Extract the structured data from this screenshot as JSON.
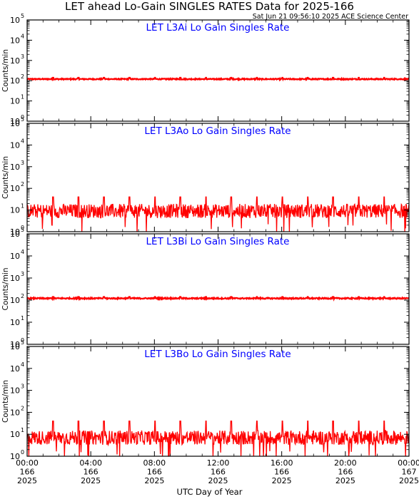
{
  "title": "LET ahead Lo-Gain SINGLES RATES Data for 2025-166",
  "timestamp": "Sat Jun 21 09:56:10 2025 ACE Science Center",
  "xlabel": "UTC Day of Year",
  "colors": {
    "axes": "#000000",
    "series": "#ff0000",
    "panel_title": "#0000ff"
  },
  "chart_data": [
    {
      "type": "line",
      "title": "LET L3Ai Lo Gain Singles Rate",
      "ylabel": "Counts/min",
      "yscale": "log",
      "ylim": [
        1,
        100000
      ],
      "y_ticks": [
        "10^0",
        "10^1",
        "10^2",
        "10^3",
        "10^4",
        "10^5"
      ],
      "xlim": [
        "2025-166 00:00",
        "2025-167 00:00"
      ],
      "series": [
        {
          "base": 120,
          "spike": 140,
          "spike_every_hours": 1.6,
          "noise": 0.02
        }
      ]
    },
    {
      "type": "line",
      "title": "LET L3Ao Lo Gain Singles Rate",
      "ylabel": "Counts/min",
      "yscale": "log",
      "ylim": [
        1,
        100000
      ],
      "y_ticks": [
        "10^0",
        "10^1",
        "10^2",
        "10^3",
        "10^4",
        "10^5"
      ],
      "xlim": [
        "2025-166 00:00",
        "2025-167 00:00"
      ],
      "series": [
        {
          "base": 9,
          "spike": 40,
          "spike_every_hours": 1.6,
          "noise": 0.25,
          "min": 1
        }
      ]
    },
    {
      "type": "line",
      "title": "LET L3Bi Lo Gain Singles Rate",
      "ylabel": "Counts/min",
      "yscale": "log",
      "ylim": [
        1,
        100000
      ],
      "y_ticks": [
        "10^0",
        "10^1",
        "10^2",
        "10^3",
        "10^4",
        "10^5"
      ],
      "xlim": [
        "2025-166 00:00",
        "2025-167 00:00"
      ],
      "series": [
        {
          "base": 120,
          "spike": 140,
          "spike_every_hours": 1.6,
          "noise": 0.02
        }
      ]
    },
    {
      "type": "line",
      "title": "LET L3Bo Lo Gain Singles Rate",
      "ylabel": "Counts/min",
      "yscale": "log",
      "ylim": [
        1,
        100000
      ],
      "y_ticks": [
        "10^0",
        "10^1",
        "10^2",
        "10^3",
        "10^4",
        "10^5"
      ],
      "xlim": [
        "2025-166 00:00",
        "2025-167 00:00"
      ],
      "series": [
        {
          "base": 7,
          "spike": 40,
          "spike_every_hours": 1.6,
          "noise": 0.25,
          "min": 1
        }
      ]
    }
  ],
  "x_ticks": [
    {
      "time": "00:00",
      "day": "166",
      "year": "2025"
    },
    {
      "time": "04:00",
      "day": "166",
      "year": "2025"
    },
    {
      "time": "08:00",
      "day": "166",
      "year": "2025"
    },
    {
      "time": "12:00",
      "day": "166",
      "year": "2025"
    },
    {
      "time": "16:00",
      "day": "166",
      "year": "2025"
    },
    {
      "time": "20:00",
      "day": "166",
      "year": "2025"
    },
    {
      "time": "00:00",
      "day": "167",
      "year": "2025"
    }
  ]
}
